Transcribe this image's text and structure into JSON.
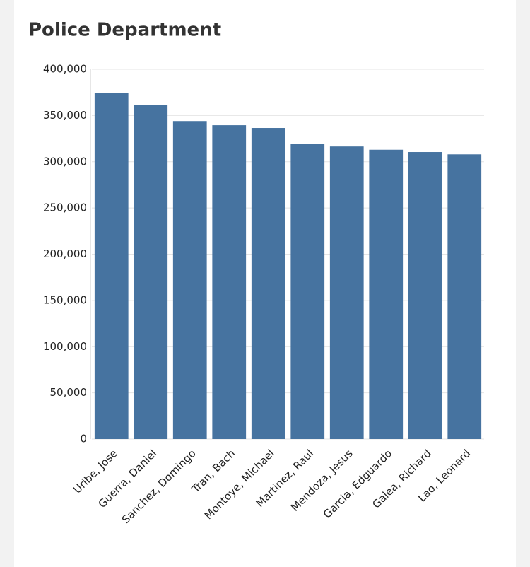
{
  "chart_data": {
    "type": "bar",
    "title": "Police Department",
    "categories": [
      "Uribe, Jose",
      "Guerra, Daniel",
      "Sanchez, Domingo",
      "Tran, Bach",
      "Montoye, Michael",
      "Martinez, Raul",
      "Mendoza, Jesus",
      "Garcia, Edguardo",
      "Galea, Richard",
      "Lao, Leonard"
    ],
    "values": [
      374000,
      361000,
      344000,
      339500,
      336500,
      319000,
      316500,
      313000,
      310500,
      308000
    ],
    "color": "#4673a0",
    "ylim": [
      0,
      400000
    ],
    "yticks": [
      0,
      {
        "value": 50000,
        "label": "50,000"
      },
      {
        "value": 100000,
        "label": "100,000"
      },
      {
        "value": 150000,
        "label": "150,000"
      },
      {
        "value": 200000,
        "label": "200,000"
      },
      {
        "value": 250000,
        "label": "250,000"
      },
      {
        "value": 300000,
        "label": "300,000"
      },
      {
        "value": 350000,
        "label": "350,000"
      },
      {
        "value": 400000,
        "label": "400,000"
      }
    ],
    "grid": true
  }
}
